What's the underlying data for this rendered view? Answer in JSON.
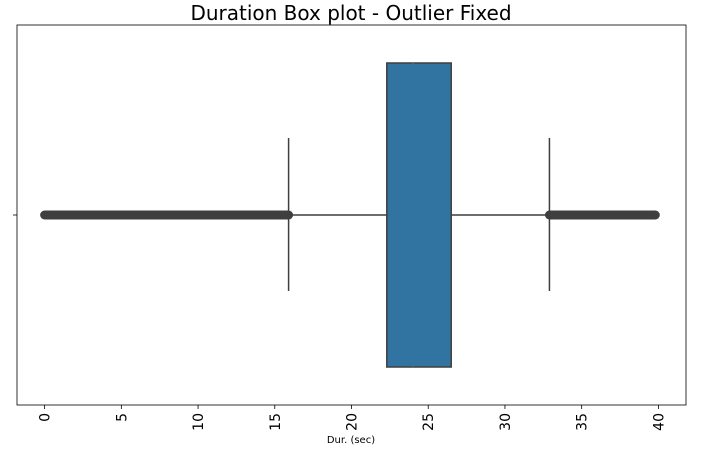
{
  "chart_data": {
    "type": "box",
    "title": "Duration Box plot - Outlier Fixed",
    "xlabel": "Dur. (sec)",
    "ylabel": "",
    "xlim": [
      -1.8,
      41.8
    ],
    "xticks": [
      0,
      5,
      10,
      15,
      20,
      25,
      30,
      35,
      40
    ],
    "tick_labels": [
      "0",
      "5",
      "10",
      "15",
      "20",
      "25",
      "30",
      "35",
      "40"
    ],
    "orientation": "horizontal",
    "grid": false,
    "box": {
      "q1": 22.3,
      "median": 24.0,
      "q3": 26.5,
      "whisker_low": 15.9,
      "whisker_high": 32.9,
      "color": "#3274a1",
      "line_color": "#3f3f3f"
    },
    "outlier_ranges": [
      {
        "from": 0.0,
        "to": 15.9
      },
      {
        "from": 32.9,
        "to": 39.8
      }
    ]
  }
}
